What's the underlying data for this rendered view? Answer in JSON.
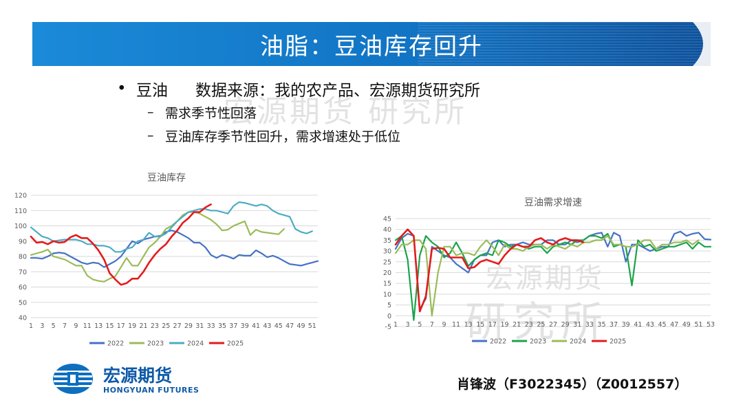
{
  "header": {
    "title": "油脂：豆油库存回升"
  },
  "bullets": {
    "main_left": "豆油",
    "main_right": "数据来源：我的农产品、宏源期货研究所",
    "subs": [
      "需求季节性回落",
      "豆油库存季节性回升，需求增速处于低位"
    ]
  },
  "watermarks": {
    "top": "宏源期货 研究所",
    "mid": "宏源期货",
    "low": "研究所"
  },
  "colors": {
    "2022": "#4472C4",
    "2023": "#9BBB59",
    "2024": "#4BACC6",
    "2025": "#E41A1C",
    "banner": "#1173c2"
  },
  "chart_data": [
    {
      "type": "line",
      "title": "豆油库存",
      "ylim": [
        40,
        120
      ],
      "yticks": [
        40,
        50,
        60,
        70,
        80,
        90,
        100,
        110,
        120
      ],
      "x": [
        1,
        2,
        3,
        4,
        5,
        6,
        7,
        8,
        9,
        10,
        11,
        12,
        13,
        14,
        15,
        16,
        17,
        18,
        19,
        20,
        21,
        22,
        23,
        24,
        25,
        26,
        27,
        28,
        29,
        30,
        31,
        32,
        33,
        34,
        35,
        36,
        37,
        38,
        39,
        40,
        41,
        42,
        43,
        44,
        45,
        46,
        47,
        48,
        49,
        50,
        51,
        52
      ],
      "xticks": [
        1,
        3,
        5,
        7,
        9,
        11,
        13,
        15,
        17,
        19,
        21,
        23,
        25,
        27,
        29,
        31,
        33,
        35,
        37,
        39,
        41,
        43,
        45,
        47,
        49,
        51
      ],
      "series": [
        {
          "name": "2022",
          "color": "#4472C4",
          "values": [
            79,
            79,
            78.5,
            80,
            82,
            82.5,
            82,
            80,
            78,
            76,
            75,
            76,
            75.5,
            73,
            75,
            77,
            80,
            85,
            90,
            88.5,
            91,
            92,
            93,
            93.5,
            96,
            97,
            96,
            94,
            92,
            89,
            89,
            86,
            81,
            79,
            81,
            80,
            78.5,
            81,
            80.5,
            80.5,
            84,
            82,
            79.5,
            80.5,
            79,
            77,
            75,
            74.5,
            74,
            75,
            76,
            77
          ]
        },
        {
          "name": "2023",
          "color": "#9BBB59",
          "values": [
            81,
            82,
            83,
            84.5,
            80,
            79,
            78,
            76,
            74,
            74,
            67.5,
            65,
            64,
            63.5,
            65.5,
            67,
            73,
            79,
            74,
            74,
            80,
            86,
            89,
            93,
            98,
            100,
            103,
            107,
            109,
            109,
            108,
            106,
            104,
            101,
            97,
            97.5,
            100,
            101.5,
            103,
            94,
            97.5,
            96,
            95.5,
            95,
            94.5,
            98,
            null,
            null,
            null,
            null,
            null,
            null
          ]
        },
        {
          "name": "2024",
          "color": "#4BACC6",
          "values": [
            99,
            96,
            93,
            92,
            90,
            90.5,
            91,
            91,
            91,
            90,
            88,
            88,
            87,
            87,
            86,
            83,
            83,
            85,
            86,
            90,
            91,
            95.5,
            93,
            93,
            95,
            99,
            103,
            106,
            109,
            110,
            111,
            111,
            110,
            110,
            109,
            108,
            113,
            115.5,
            115,
            114,
            113,
            114,
            113,
            110,
            108,
            107,
            106,
            98,
            96,
            95,
            96.5,
            null
          ]
        },
        {
          "name": "2025",
          "color": "#E41A1C",
          "values": [
            93,
            89,
            89.5,
            88,
            90,
            89,
            89.5,
            92.5,
            94,
            92,
            92,
            88.5,
            84,
            78,
            69,
            65,
            61.5,
            62.5,
            65.5,
            65.5,
            70,
            76,
            81,
            85,
            88,
            93,
            97,
            102,
            105,
            109,
            109,
            112,
            114,
            null,
            null,
            null,
            null,
            null,
            null,
            null,
            null,
            null,
            null,
            null,
            null,
            null,
            null,
            null,
            null,
            null,
            null,
            null
          ]
        }
      ],
      "legend": "bottom"
    },
    {
      "type": "line",
      "title": "豆油需求增速",
      "ylim": [
        -5,
        45
      ],
      "yticks": [
        -5,
        0,
        5,
        10,
        15,
        20,
        25,
        30,
        35,
        40,
        45
      ],
      "x": [
        1,
        2,
        3,
        4,
        5,
        6,
        7,
        8,
        9,
        10,
        11,
        12,
        13,
        14,
        15,
        16,
        17,
        18,
        19,
        20,
        21,
        22,
        23,
        24,
        25,
        26,
        27,
        28,
        29,
        30,
        31,
        32,
        33,
        34,
        35,
        36,
        37,
        38,
        39,
        40,
        41,
        42,
        43,
        44,
        45,
        46,
        47,
        48,
        49,
        50,
        51,
        52,
        53
      ],
      "xticks": [
        1,
        3,
        5,
        7,
        9,
        11,
        13,
        15,
        17,
        19,
        21,
        23,
        25,
        27,
        29,
        31,
        33,
        35,
        37,
        39,
        41,
        43,
        45,
        47,
        49,
        51,
        53
      ],
      "series": [
        {
          "name": "2022",
          "color": "#4472C4",
          "values": [
            31,
            36,
            38,
            37,
            3,
            8,
            32,
            30,
            28,
            27,
            24,
            22,
            20,
            26,
            28,
            28,
            34,
            35,
            32,
            33,
            33,
            34,
            33,
            33,
            33,
            35,
            35,
            33,
            33,
            35,
            34,
            35,
            37,
            38,
            38.5,
            32,
            38.5,
            37,
            25,
            33,
            33,
            31.5,
            30,
            31,
            32,
            32,
            38,
            39,
            37,
            38,
            38.5,
            35.5,
            35.3
          ]
        },
        {
          "name": "2023",
          "color": "#1AA34A",
          "values": [
            35,
            37,
            26,
            -2,
            28,
            37,
            34,
            32,
            27,
            29,
            34,
            29,
            23,
            26,
            28,
            29,
            28,
            35,
            34,
            32,
            33,
            32,
            31,
            32,
            32,
            29,
            32,
            33,
            34,
            33,
            35,
            35,
            37,
            37,
            36,
            38,
            32,
            33,
            32,
            14,
            35,
            32,
            33,
            30,
            31,
            32,
            32,
            33,
            34,
            31,
            34,
            32,
            32
          ]
        },
        {
          "name": "2024",
          "color": "#9BBB59",
          "values": [
            29,
            33,
            33,
            35,
            35,
            31,
            0,
            20,
            32,
            32,
            28,
            29,
            29,
            28,
            32,
            35,
            32,
            28,
            33,
            31,
            31,
            30,
            32,
            33,
            33,
            31,
            33,
            32,
            31,
            33,
            32,
            34,
            34,
            35,
            35,
            37,
            33,
            33,
            32,
            32,
            33,
            35,
            35,
            31,
            33,
            33,
            34,
            34,
            35,
            33,
            35,
            null,
            null
          ]
        },
        {
          "name": "2025",
          "color": "#E41A1C",
          "values": [
            33,
            37,
            40,
            37,
            2,
            9,
            31,
            31.5,
            31,
            27,
            27,
            27,
            22,
            22.5,
            25,
            26,
            25,
            24,
            28,
            31,
            33,
            32,
            32,
            35,
            36,
            34,
            33,
            35,
            36,
            35,
            35,
            34,
            null,
            null,
            null,
            null,
            null,
            null,
            null,
            null,
            null,
            null,
            null,
            null,
            null,
            null,
            null,
            null,
            null,
            null,
            null,
            null,
            null
          ]
        }
      ],
      "legend": "bottom"
    }
  ],
  "logo": {
    "cn": "宏源期货",
    "en": "HONGYUAN FUTURES"
  },
  "footer": {
    "author": "肖锋波（F3022345）（Z0012557）"
  }
}
